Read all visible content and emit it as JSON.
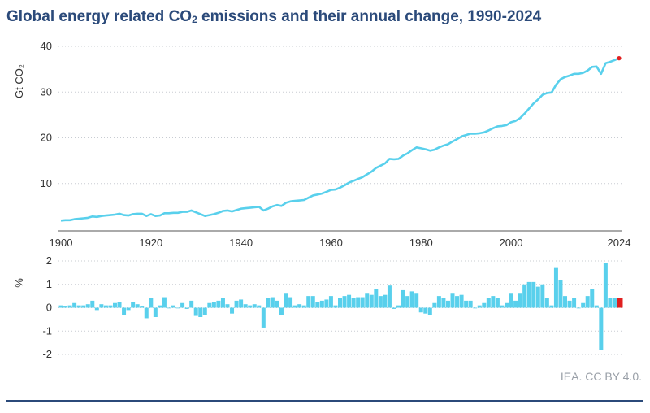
{
  "title": {
    "pre": "Global energy related CO",
    "sub": "2",
    "post": " emissions and their annual change, 1990-2024"
  },
  "source": "IEA. CC BY 4.0.",
  "colors": {
    "line": "#59d0ec",
    "bar": "#59d0ec",
    "highlight": "#e02020",
    "title": "#2b4a7a"
  },
  "chart_data": [
    {
      "type": "line",
      "ylabel": "Gt CO₂",
      "xlim": [
        1900,
        2024
      ],
      "ylim": [
        0,
        40
      ],
      "x_ticks": [
        "1900",
        "1920",
        "1940",
        "1960",
        "1980",
        "2000",
        "2024"
      ],
      "y_ticks": [
        "10",
        "20",
        "30",
        "40"
      ],
      "grid": true,
      "x": [
        1900,
        1901,
        1902,
        1903,
        1904,
        1905,
        1906,
        1907,
        1908,
        1909,
        1910,
        1911,
        1912,
        1913,
        1914,
        1915,
        1916,
        1917,
        1918,
        1919,
        1920,
        1921,
        1922,
        1923,
        1924,
        1925,
        1926,
        1927,
        1928,
        1929,
        1930,
        1931,
        1932,
        1933,
        1934,
        1935,
        1936,
        1937,
        1938,
        1939,
        1940,
        1941,
        1942,
        1943,
        1944,
        1945,
        1946,
        1947,
        1948,
        1949,
        1950,
        1951,
        1952,
        1953,
        1954,
        1955,
        1956,
        1957,
        1958,
        1959,
        1960,
        1961,
        1962,
        1963,
        1964,
        1965,
        1966,
        1967,
        1968,
        1969,
        1970,
        1971,
        1972,
        1973,
        1974,
        1975,
        1976,
        1977,
        1978,
        1979,
        1980,
        1981,
        1982,
        1983,
        1984,
        1985,
        1986,
        1987,
        1988,
        1989,
        1990,
        1991,
        1992,
        1993,
        1994,
        1995,
        1996,
        1997,
        1998,
        1999,
        2000,
        2001,
        2002,
        2003,
        2004,
        2005,
        2006,
        2007,
        2008,
        2009,
        2010,
        2011,
        2012,
        2013,
        2014,
        2015,
        2016,
        2017,
        2018,
        2019,
        2020,
        2021,
        2022,
        2023,
        2024
      ],
      "values": [
        1.9,
        2.0,
        2.0,
        2.2,
        2.3,
        2.4,
        2.5,
        2.8,
        2.7,
        2.9,
        3.0,
        3.1,
        3.2,
        3.4,
        3.1,
        3.0,
        3.3,
        3.4,
        3.4,
        2.9,
        3.3,
        2.9,
        3.0,
        3.5,
        3.5,
        3.6,
        3.6,
        3.8,
        3.8,
        4.1,
        3.7,
        3.3,
        2.9,
        3.1,
        3.3,
        3.6,
        4.0,
        4.1,
        3.9,
        4.2,
        4.5,
        4.6,
        4.7,
        4.8,
        4.9,
        4.1,
        4.5,
        5.0,
        5.3,
        5.1,
        5.8,
        6.1,
        6.2,
        6.3,
        6.4,
        6.9,
        7.4,
        7.6,
        7.8,
        8.2,
        8.6,
        8.7,
        9.1,
        9.6,
        10.2,
        10.6,
        11.0,
        11.4,
        12.0,
        12.6,
        13.4,
        13.9,
        14.4,
        15.4,
        15.3,
        15.4,
        16.1,
        16.6,
        17.3,
        17.9,
        17.7,
        17.5,
        17.2,
        17.4,
        17.9,
        18.3,
        18.6,
        19.2,
        19.7,
        20.3,
        20.6,
        20.9,
        20.9,
        21.0,
        21.2,
        21.6,
        22.1,
        22.5,
        22.6,
        22.8,
        23.4,
        23.7,
        24.3,
        25.3,
        26.4,
        27.5,
        28.4,
        29.4,
        29.8,
        29.9,
        31.6,
        32.8,
        33.3,
        33.6,
        34.0,
        34.0,
        34.2,
        34.7,
        35.5,
        35.6,
        34.0,
        36.3,
        36.6,
        37.0,
        37.4
      ],
      "highlight_point": {
        "x": 2024,
        "value": 37.4
      }
    },
    {
      "type": "bar",
      "ylabel": "%",
      "xlim": [
        1900,
        2024
      ],
      "ylim": [
        -2,
        2
      ],
      "y_ticks": [
        "2",
        "1",
        "0",
        "-1",
        "-2"
      ],
      "grid": true,
      "x": [
        1900,
        1901,
        1902,
        1903,
        1904,
        1905,
        1906,
        1907,
        1908,
        1909,
        1910,
        1911,
        1912,
        1913,
        1914,
        1915,
        1916,
        1917,
        1918,
        1919,
        1920,
        1921,
        1922,
        1923,
        1924,
        1925,
        1926,
        1927,
        1928,
        1929,
        1930,
        1931,
        1932,
        1933,
        1934,
        1935,
        1936,
        1937,
        1938,
        1939,
        1940,
        1941,
        1942,
        1943,
        1944,
        1945,
        1946,
        1947,
        1948,
        1949,
        1950,
        1951,
        1952,
        1953,
        1954,
        1955,
        1956,
        1957,
        1958,
        1959,
        1960,
        1961,
        1962,
        1963,
        1964,
        1965,
        1966,
        1967,
        1968,
        1969,
        1970,
        1971,
        1972,
        1973,
        1974,
        1975,
        1976,
        1977,
        1978,
        1979,
        1980,
        1981,
        1982,
        1983,
        1984,
        1985,
        1986,
        1987,
        1988,
        1989,
        1990,
        1991,
        1992,
        1993,
        1994,
        1995,
        1996,
        1997,
        1998,
        1999,
        2000,
        2001,
        2002,
        2003,
        2004,
        2005,
        2006,
        2007,
        2008,
        2009,
        2010,
        2011,
        2012,
        2013,
        2014,
        2015,
        2016,
        2017,
        2018,
        2019,
        2020,
        2021,
        2022,
        2023,
        2024
      ],
      "values": [
        0.1,
        0.05,
        0.1,
        0.2,
        0.1,
        0.1,
        0.15,
        0.3,
        -0.1,
        0.15,
        0.1,
        0.1,
        0.2,
        0.25,
        -0.3,
        -0.1,
        0.25,
        0.15,
        0.05,
        -0.45,
        0.4,
        -0.4,
        0.1,
        0.45,
        0.0,
        0.1,
        0.0,
        0.2,
        -0.05,
        0.3,
        -0.35,
        -0.4,
        -0.3,
        0.2,
        0.25,
        0.3,
        0.4,
        0.15,
        -0.25,
        0.3,
        0.35,
        0.15,
        0.1,
        0.15,
        0.1,
        -0.85,
        0.4,
        0.45,
        0.3,
        -0.3,
        0.6,
        0.45,
        0.1,
        0.15,
        0.1,
        0.5,
        0.5,
        0.25,
        0.3,
        0.35,
        0.5,
        0.1,
        0.4,
        0.5,
        0.55,
        0.4,
        0.45,
        0.45,
        0.6,
        0.55,
        0.8,
        0.5,
        0.55,
        0.95,
        -0.05,
        0.1,
        0.75,
        0.5,
        0.7,
        0.6,
        -0.2,
        -0.25,
        -0.3,
        0.2,
        0.5,
        0.4,
        0.3,
        0.6,
        0.5,
        0.55,
        0.3,
        0.3,
        0.0,
        0.1,
        0.2,
        0.4,
        0.5,
        0.4,
        0.1,
        0.2,
        0.6,
        0.3,
        0.6,
        1.0,
        1.1,
        1.1,
        0.9,
        1.0,
        0.4,
        0.1,
        1.7,
        1.2,
        0.5,
        0.3,
        0.4,
        0.0,
        0.2,
        0.5,
        0.8,
        0.1,
        -1.8,
        1.9,
        0.4,
        0.4,
        0.4
      ],
      "highlight_bar": {
        "x": 2024,
        "value": 0.4
      }
    }
  ]
}
